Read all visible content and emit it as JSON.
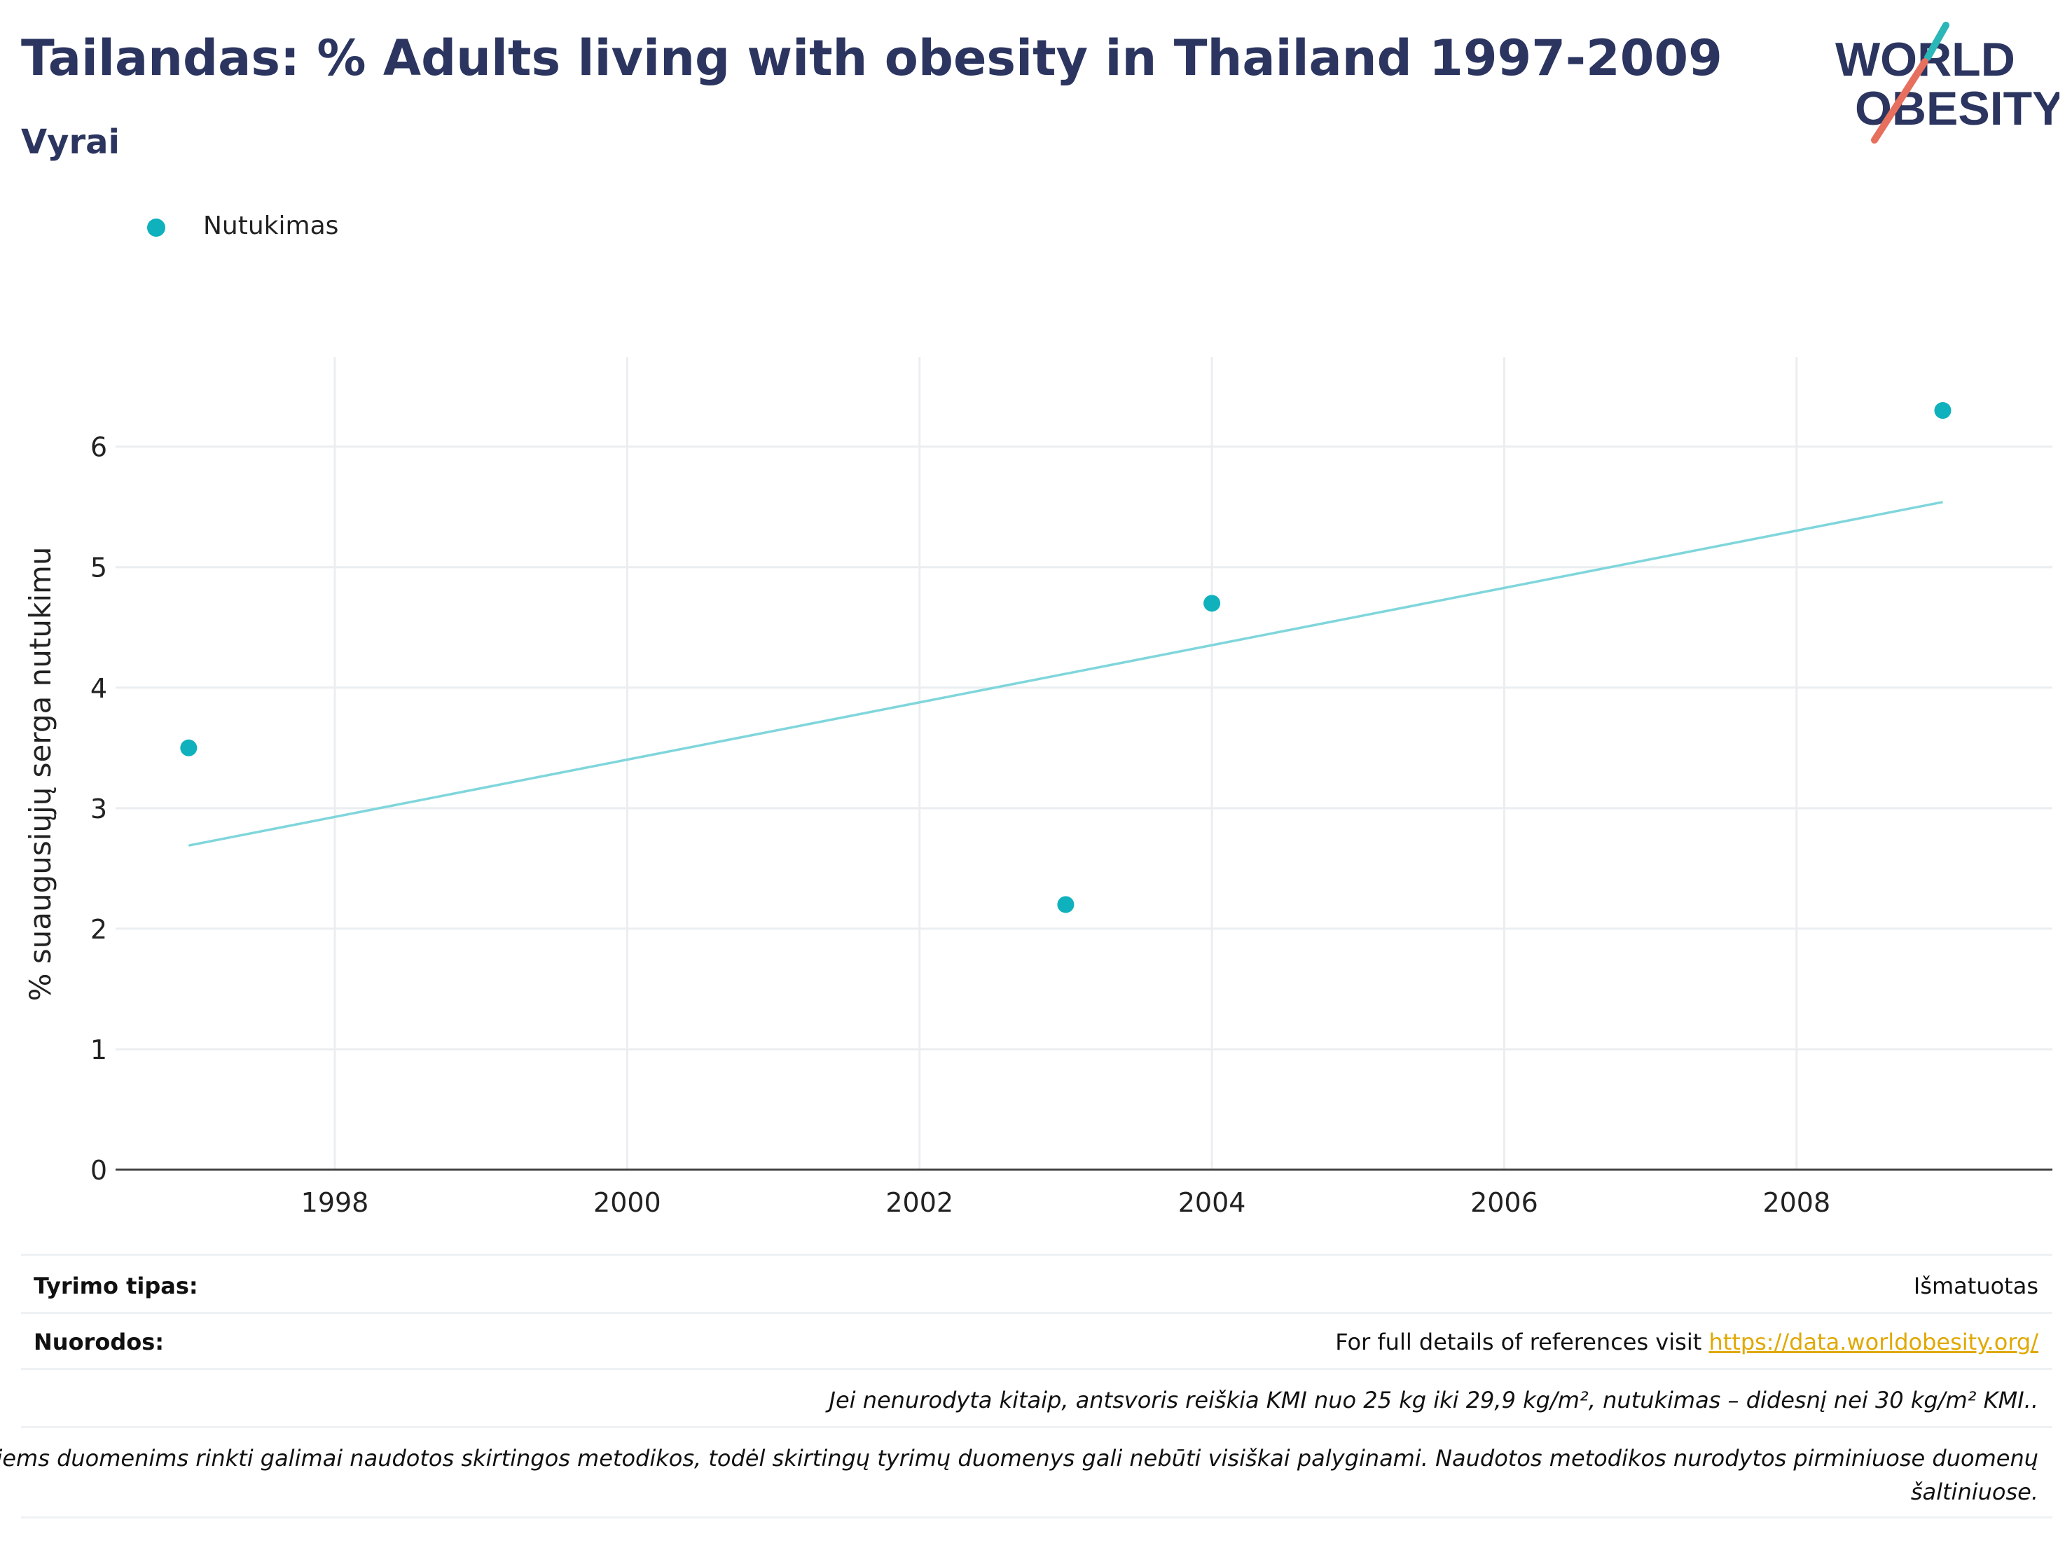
{
  "header": {
    "title": "Tailandas: % Adults living with obesity in Thailand 1997-2009",
    "subtitle": "Vyrai"
  },
  "logo": {
    "line1": "WORLD",
    "line2": "OBESITY",
    "accent_teal": "#2bb6b7",
    "accent_red": "#e76f5e",
    "text_color": "#2b355f"
  },
  "legend": {
    "label": "Nutukimas",
    "color": "#0fb1bd"
  },
  "chart_data": {
    "type": "scatter",
    "xlabel": "",
    "ylabel": "% suaugusiųjų serga nutukimu",
    "xlim": [
      1996.5,
      2009.75
    ],
    "ylim": [
      0,
      6.8
    ],
    "x_ticks": [
      1998,
      2000,
      2002,
      2004,
      2006,
      2008
    ],
    "y_ticks": [
      0,
      1,
      2,
      3,
      4,
      5,
      6
    ],
    "grid": true,
    "legend_position": "top-left",
    "series": [
      {
        "name": "Nutukimas",
        "color": "#0fb1bd",
        "points": [
          {
            "x": 1997,
            "y": 3.5
          },
          {
            "x": 2003,
            "y": 2.2
          },
          {
            "x": 2004,
            "y": 4.7
          },
          {
            "x": 2009,
            "y": 6.3
          }
        ]
      }
    ],
    "trendline": {
      "color": "#7fd6db",
      "from": {
        "x": 1997,
        "y": 2.69
      },
      "to": {
        "x": 2009,
        "y": 5.54
      }
    }
  },
  "footer": {
    "study_type_label": "Tyrimo tipas:",
    "study_type_value": "Išmatuotas",
    "references_label": "Nuorodos:",
    "references_text": "For full details of references visit ",
    "references_link": "https://data.worldobesity.org/",
    "note1": "Jei nenurodyta kitaip, antsvoris reiškia KMI nuo 25 kg iki 29,9 kg/m², nutukimas – didesnį nei 30 kg/m² KMI..",
    "note2_line1": "Šiems duomenims rinkti galimai naudotos skirtingos metodikos, todėl skirtingų tyrimų duomenys gali nebūti visiškai palyginami. Naudotos metodikos nurodytos pirminiuose duomenų",
    "note2_line2": "šaltiniuose."
  }
}
